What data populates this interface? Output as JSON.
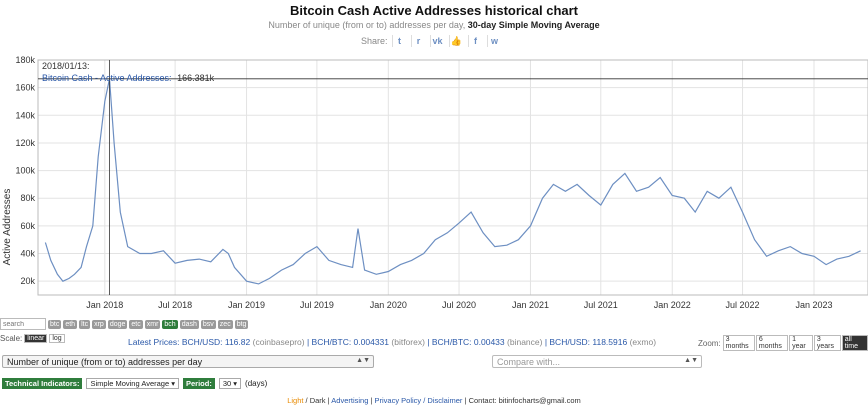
{
  "header": {
    "title": "Bitcoin Cash Active Addresses historical chart",
    "subtitle_gray": "Number of unique (from or to) addresses per day,",
    "subtitle_bold": "30-day Simple Moving Average",
    "share_label": "Share:"
  },
  "share_icons": [
    "twitter-icon",
    "reddit-icon",
    "vk-icon",
    "like-icon",
    "facebook-icon",
    "weibo-icon"
  ],
  "chart_data": {
    "type": "line",
    "title": "Bitcoin Cash Active Addresses historical chart",
    "ylabel": "Active Addresses",
    "ylim": [
      10000,
      180000
    ],
    "yticks": [
      "20k",
      "40k",
      "60k",
      "80k",
      "100k",
      "120k",
      "140k",
      "160k",
      "180k"
    ],
    "xticks": [
      "Jan 2018",
      "Jul 2018",
      "Jan 2019",
      "Jul 2019",
      "Jan 2020",
      "Jul 2020",
      "Jan 2021",
      "Jul 2021",
      "Jan 2022",
      "Jul 2022",
      "Jan 2023"
    ],
    "grid": true,
    "color": "#6d8fc2",
    "tooltip": {
      "date": "2018/01/13:",
      "series": "Bitcoin Cash - Active Addresses:",
      "value": "166.381k"
    },
    "series": [
      {
        "x": [
          "2017-08-01",
          "2017-08-15",
          "2017-09-01",
          "2017-09-15",
          "2017-10-01",
          "2017-10-15",
          "2017-11-01",
          "2017-11-15",
          "2017-12-01",
          "2017-12-15",
          "2018-01-01",
          "2018-01-13",
          "2018-01-25",
          "2018-02-10",
          "2018-03-01",
          "2018-04-01",
          "2018-05-01",
          "2018-06-01",
          "2018-07-01",
          "2018-08-01",
          "2018-09-01",
          "2018-10-01",
          "2018-11-01",
          "2018-11-15",
          "2018-12-01",
          "2019-01-01",
          "2019-02-01",
          "2019-03-01",
          "2019-04-01",
          "2019-05-01",
          "2019-06-01",
          "2019-07-01",
          "2019-08-01",
          "2019-09-01",
          "2019-10-01",
          "2019-10-15",
          "2019-11-01",
          "2019-12-01",
          "2020-01-01",
          "2020-02-01",
          "2020-03-01",
          "2020-04-01",
          "2020-05-01",
          "2020-06-01",
          "2020-07-01",
          "2020-08-01",
          "2020-09-01",
          "2020-10-01",
          "2020-11-01",
          "2020-12-01",
          "2021-01-01",
          "2021-02-01",
          "2021-03-01",
          "2021-04-01",
          "2021-05-01",
          "2021-06-01",
          "2021-07-01",
          "2021-08-01",
          "2021-09-01",
          "2021-10-01",
          "2021-11-01",
          "2021-12-01",
          "2022-01-01",
          "2022-02-01",
          "2022-03-01",
          "2022-04-01",
          "2022-05-01",
          "2022-06-01",
          "2022-07-01",
          "2022-08-01",
          "2022-09-01",
          "2022-10-01",
          "2022-11-01",
          "2022-12-01",
          "2023-01-01",
          "2023-02-01",
          "2023-03-01",
          "2023-04-01",
          "2023-05-01"
        ],
        "values": [
          48000,
          35000,
          25000,
          20000,
          22000,
          25000,
          30000,
          45000,
          60000,
          110000,
          150000,
          166381,
          120000,
          70000,
          45000,
          40000,
          40000,
          42000,
          33000,
          35000,
          36000,
          34000,
          43000,
          40000,
          30000,
          20000,
          18000,
          22000,
          28000,
          32000,
          40000,
          45000,
          35000,
          32000,
          30000,
          58000,
          28000,
          25000,
          27000,
          32000,
          35000,
          40000,
          50000,
          55000,
          62000,
          70000,
          55000,
          45000,
          46000,
          50000,
          60000,
          80000,
          90000,
          85000,
          90000,
          82000,
          75000,
          90000,
          98000,
          85000,
          88000,
          95000,
          82000,
          80000,
          70000,
          85000,
          80000,
          88000,
          70000,
          50000,
          38000,
          42000,
          45000,
          40000,
          38000,
          32000,
          36000,
          38000,
          42000
        ]
      }
    ]
  },
  "coins": {
    "search_placeholder": "search",
    "items": [
      "btc",
      "eth",
      "ltc",
      "xrp",
      "doge",
      "etc",
      "xmr",
      "bch",
      "dash",
      "bsv",
      "zec",
      "btg"
    ],
    "active": "bch"
  },
  "scale": {
    "label": "Scale:",
    "linear": "linear",
    "log": "log"
  },
  "prices": {
    "label": "Latest Prices:",
    "p1": "BCH/USD: 116.82",
    "p1_src": "(coinbasepro)",
    "p2": "BCH/BTC: 0.004331",
    "p2_src": "(bitforex)",
    "p3": "BCH/BTC: 0.00433",
    "p3_src": "(binance)",
    "p4": "BCH/USD: 118.5916",
    "p4_src": "(exmo)"
  },
  "zoom": {
    "label": "Zoom:",
    "options": [
      "3 months",
      "6 months",
      "1 year",
      "3 years",
      "all time"
    ],
    "selected": "all time"
  },
  "metric_select": {
    "value": "Number of unique (from or to) addresses per day"
  },
  "compare_select": {
    "placeholder": "Compare with..."
  },
  "technical": {
    "label": "Technical Indicators:",
    "indicator": "Simple Moving Average",
    "period_label": "Period:",
    "period_value": "30",
    "period_unit": "(days)"
  },
  "footer": {
    "light": "Light",
    "dark": "Dark",
    "advertising": "Advertising",
    "privacy": "Privacy Policy / Disclaimer",
    "contact": "Contact: bitinfocharts@gmail.com"
  }
}
